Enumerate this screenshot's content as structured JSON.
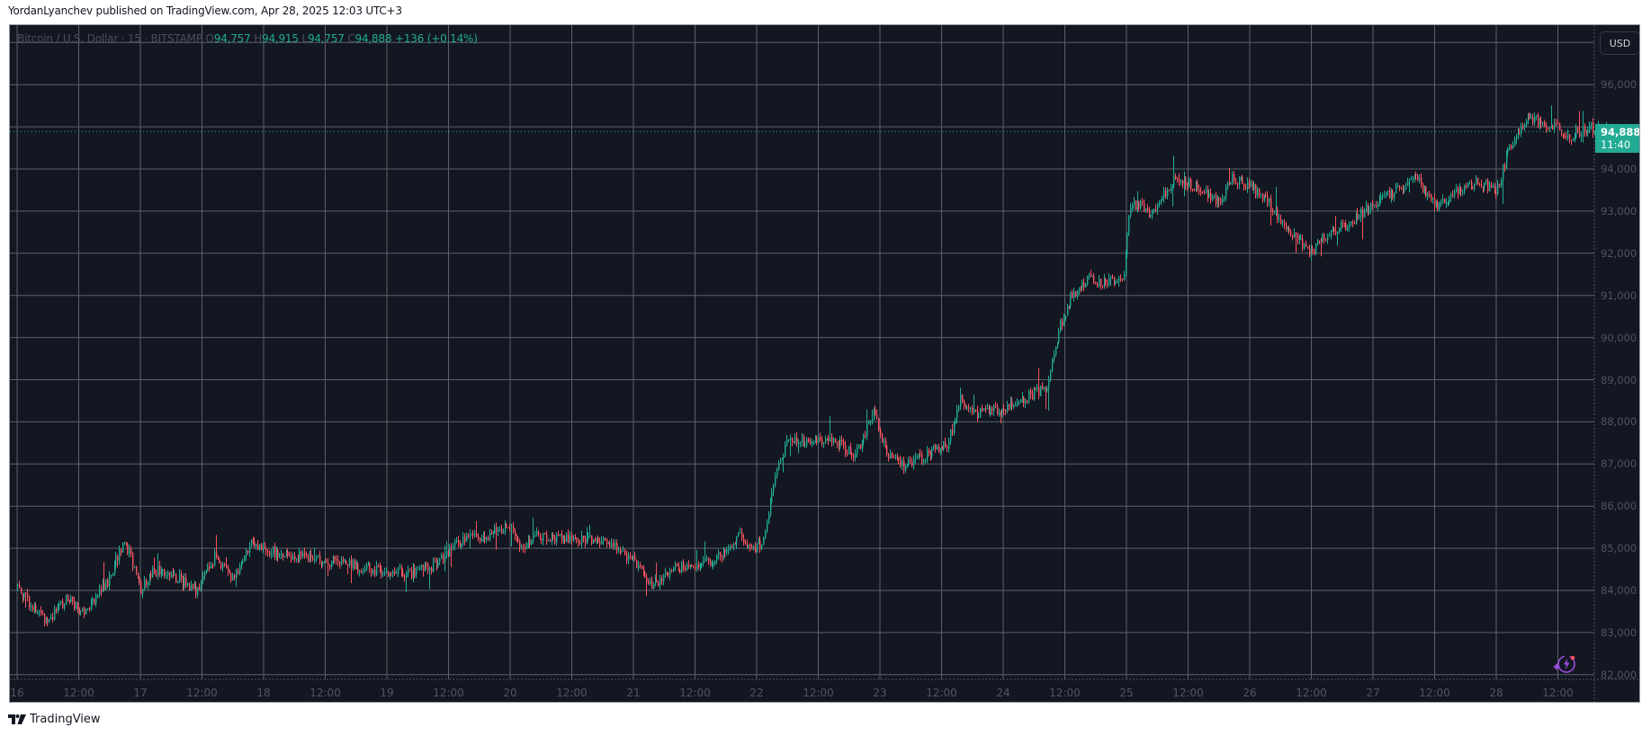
{
  "header": {
    "published_line": "YordanLyanchev published on TradingView.com, Apr 28, 2025 12:03 UTC+3"
  },
  "legend": {
    "symbol": "Bitcoin / U.S. Dollar · 15 · BITSTAMP",
    "open_label": "O",
    "open": "94,757",
    "high_label": "H",
    "high": "94,915",
    "low_label": "L",
    "low": "94,757",
    "close_label": "C",
    "close": "94,888",
    "change": "+136 (+0.14%)"
  },
  "price_axis": {
    "currency_button": "USD",
    "last_price": "94,888",
    "countdown": "11:40",
    "labels": [
      "96,000",
      "95,000",
      "94,000",
      "93,000",
      "92,000",
      "91,000",
      "90,000",
      "89,000",
      "88,000",
      "87,000",
      "86,000",
      "85,000",
      "84,000",
      "83,000",
      "82,000"
    ]
  },
  "time_axis": {
    "labels": [
      "16",
      "12:00",
      "17",
      "12:00",
      "18",
      "12:00",
      "19",
      "12:00",
      "20",
      "12:00",
      "21",
      "12:00",
      "22",
      "12:00",
      "23",
      "12:00",
      "24",
      "12:00",
      "25",
      "12:00",
      "26",
      "12:00",
      "27",
      "12:00",
      "28",
      "12:00"
    ]
  },
  "footer": {
    "brand": "TradingView"
  },
  "colors": {
    "background": "#131722",
    "grid": "#5d606b",
    "up": "#22ab94",
    "down": "#f7525f",
    "accent": "#22ab94",
    "assistant_icon": "#9c4de0"
  },
  "icons": {
    "currency": "usd-button",
    "assistant": "lightning-sparkle-icon",
    "brand_logo": "tradingview-logo-icon"
  },
  "chart_data": {
    "type": "candlestick",
    "title": "Bitcoin / U.S. Dollar · 15 · BITSTAMP",
    "interval": "15m",
    "xlabel": "",
    "ylabel": "USD",
    "ylim": [
      81800,
      97600
    ],
    "grid": true,
    "x_range_days": [
      "Apr 16",
      "Apr 28 12:00"
    ],
    "last": {
      "open": 94757,
      "high": 94915,
      "low": 94757,
      "close": 94888,
      "change": 136,
      "change_pct": 0.14
    },
    "approx_close_path": [
      {
        "t": 0.0,
        "p": 84100
      },
      {
        "t": 0.15,
        "p": 83500
      },
      {
        "t": 0.25,
        "p": 83300
      },
      {
        "t": 0.4,
        "p": 83800
      },
      {
        "t": 0.55,
        "p": 83500
      },
      {
        "t": 0.75,
        "p": 84300
      },
      {
        "t": 0.85,
        "p": 85100
      },
      {
        "t": 0.92,
        "p": 84800
      },
      {
        "t": 1.0,
        "p": 84000
      },
      {
        "t": 1.1,
        "p": 84500
      },
      {
        "t": 1.3,
        "p": 84300
      },
      {
        "t": 1.45,
        "p": 84000
      },
      {
        "t": 1.6,
        "p": 84800
      },
      {
        "t": 1.75,
        "p": 84300
      },
      {
        "t": 1.9,
        "p": 85100
      },
      {
        "t": 2.1,
        "p": 84900
      },
      {
        "t": 2.5,
        "p": 84700
      },
      {
        "t": 2.9,
        "p": 84500
      },
      {
        "t": 3.2,
        "p": 84400
      },
      {
        "t": 3.4,
        "p": 84600
      },
      {
        "t": 3.6,
        "p": 85200
      },
      {
        "t": 3.8,
        "p": 85300
      },
      {
        "t": 4.0,
        "p": 85500
      },
      {
        "t": 4.1,
        "p": 85000
      },
      {
        "t": 4.2,
        "p": 85300
      },
      {
        "t": 4.6,
        "p": 85200
      },
      {
        "t": 4.8,
        "p": 85100
      },
      {
        "t": 5.0,
        "p": 84700
      },
      {
        "t": 5.15,
        "p": 84100
      },
      {
        "t": 5.3,
        "p": 84500
      },
      {
        "t": 5.5,
        "p": 84600
      },
      {
        "t": 5.7,
        "p": 84800
      },
      {
        "t": 5.85,
        "p": 85300
      },
      {
        "t": 5.95,
        "p": 84900
      },
      {
        "t": 6.05,
        "p": 85200
      },
      {
        "t": 6.15,
        "p": 86800
      },
      {
        "t": 6.25,
        "p": 87500
      },
      {
        "t": 6.6,
        "p": 87600
      },
      {
        "t": 6.8,
        "p": 87200
      },
      {
        "t": 6.95,
        "p": 88300
      },
      {
        "t": 7.05,
        "p": 87200
      },
      {
        "t": 7.2,
        "p": 86900
      },
      {
        "t": 7.35,
        "p": 87200
      },
      {
        "t": 7.55,
        "p": 87500
      },
      {
        "t": 7.65,
        "p": 88600
      },
      {
        "t": 7.75,
        "p": 88200
      },
      {
        "t": 8.0,
        "p": 88300
      },
      {
        "t": 8.2,
        "p": 88600
      },
      {
        "t": 8.35,
        "p": 88800
      },
      {
        "t": 8.45,
        "p": 90200
      },
      {
        "t": 8.55,
        "p": 91000
      },
      {
        "t": 8.7,
        "p": 91400
      },
      {
        "t": 8.85,
        "p": 91300
      },
      {
        "t": 8.97,
        "p": 91300
      },
      {
        "t": 9.03,
        "p": 93200
      },
      {
        "t": 9.2,
        "p": 93000
      },
      {
        "t": 9.4,
        "p": 93800
      },
      {
        "t": 9.55,
        "p": 93600
      },
      {
        "t": 9.75,
        "p": 93200
      },
      {
        "t": 9.85,
        "p": 93800
      },
      {
        "t": 10.0,
        "p": 93600
      },
      {
        "t": 10.15,
        "p": 93200
      },
      {
        "t": 10.35,
        "p": 92400
      },
      {
        "t": 10.5,
        "p": 92000
      },
      {
        "t": 10.6,
        "p": 92400
      },
      {
        "t": 10.8,
        "p": 92700
      },
      {
        "t": 11.0,
        "p": 93200
      },
      {
        "t": 11.2,
        "p": 93500
      },
      {
        "t": 11.35,
        "p": 93800
      },
      {
        "t": 11.5,
        "p": 93100
      },
      {
        "t": 11.65,
        "p": 93400
      },
      {
        "t": 11.85,
        "p": 93700
      },
      {
        "t": 12.0,
        "p": 93500
      },
      {
        "t": 12.1,
        "p": 94500
      },
      {
        "t": 12.25,
        "p": 95200
      },
      {
        "t": 12.4,
        "p": 95100
      },
      {
        "t": 12.6,
        "p": 94800
      },
      {
        "t": 12.8,
        "p": 95000
      },
      {
        "t": 13.0,
        "p": 94700
      },
      {
        "t": 13.2,
        "p": 94400
      },
      {
        "t": 13.4,
        "p": 94300
      },
      {
        "t": 13.6,
        "p": 94400
      },
      {
        "t": 13.75,
        "p": 94800
      },
      {
        "t": 13.85,
        "p": 94900
      },
      {
        "t": 14.0,
        "p": 94300
      },
      {
        "t": 14.2,
        "p": 94000
      },
      {
        "t": 14.45,
        "p": 94100
      },
      {
        "t": 14.6,
        "p": 93900
      },
      {
        "t": 14.8,
        "p": 94200
      },
      {
        "t": 15.0,
        "p": 94300
      },
      {
        "t": 15.1,
        "p": 94000
      },
      {
        "t": 15.2,
        "p": 93300
      },
      {
        "t": 15.35,
        "p": 93200
      },
      {
        "t": 15.5,
        "p": 93900
      },
      {
        "t": 15.7,
        "p": 94500
      },
      {
        "t": 15.8,
        "p": 94900
      }
    ]
  }
}
